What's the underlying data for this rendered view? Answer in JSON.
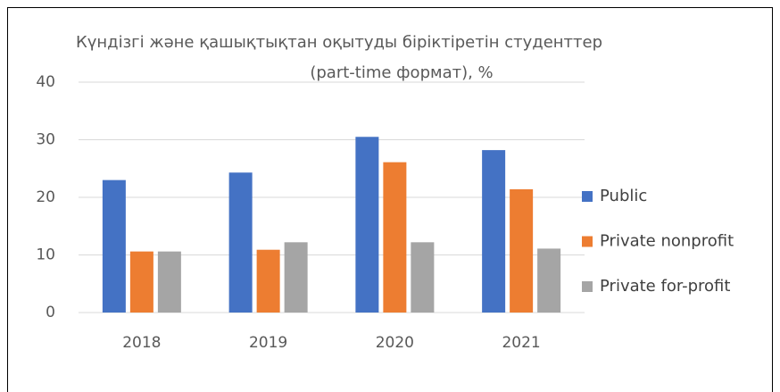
{
  "chart_data": {
    "type": "bar",
    "title": [
      "Күндізгі және қашықтықтан оқытуды біріктіретін студенттер",
      "(part-time формат), %"
    ],
    "categories": [
      "2018",
      "2019",
      "2020",
      "2021"
    ],
    "series": [
      {
        "name": "Public",
        "color": "#4472c4",
        "values": [
          23.0,
          24.3,
          30.5,
          28.2
        ]
      },
      {
        "name": "Private nonprofit",
        "color": "#ed7d31",
        "values": [
          10.6,
          10.9,
          26.1,
          21.4
        ]
      },
      {
        "name": "Private for-profit",
        "color": "#a5a5a5",
        "values": [
          10.6,
          12.2,
          12.2,
          11.1
        ]
      }
    ],
    "ylim": [
      0,
      40
    ],
    "yticks": [
      0,
      10,
      20,
      30,
      40
    ],
    "grid": true,
    "legend": "right"
  }
}
